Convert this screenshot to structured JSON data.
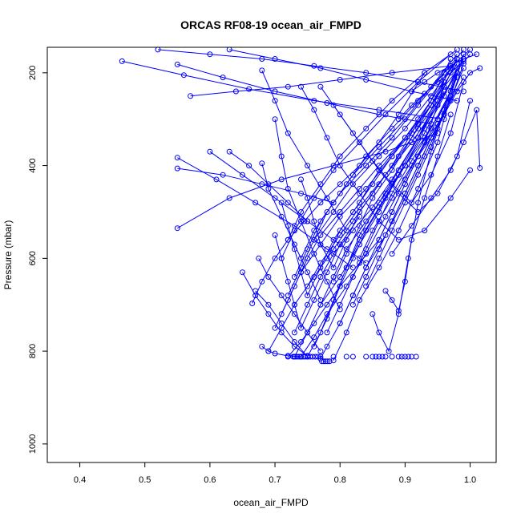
{
  "chart_data": {
    "type": "line",
    "title": "ORCAS RF08-19 ocean_air_FMPD",
    "xlabel": "ocean_air_FMPD",
    "ylabel": "Pressure (mbar)",
    "xlim": [
      0.35,
      1.04
    ],
    "ylim": [
      1040,
      145
    ],
    "y_reversed": true,
    "x_ticks": [
      0.4,
      0.5,
      0.6,
      0.7,
      0.8,
      0.9,
      1.0
    ],
    "x_tick_labels": [
      "0.4",
      "0.5",
      "0.6",
      "0.7",
      "0.8",
      "0.9",
      "1.0"
    ],
    "y_ticks": [
      200,
      400,
      600,
      800,
      1000
    ],
    "y_tick_labels": [
      "200",
      "400",
      "600",
      "800",
      "1000"
    ],
    "grid": false,
    "series_color": "#0000ff",
    "series": [
      {
        "x": [
          0.72,
          0.74,
          0.76,
          0.78,
          0.8,
          0.83,
          0.86,
          0.88,
          0.9,
          0.92,
          0.95,
          0.97,
          0.99
        ],
        "y": [
          812,
          780,
          740,
          700,
          660,
          610,
          560,
          500,
          440,
          380,
          320,
          250,
          160
        ]
      },
      {
        "x": [
          0.73,
          0.75,
          0.77,
          0.8,
          0.83,
          0.86,
          0.89,
          0.92,
          0.95,
          0.98
        ],
        "y": [
          812,
          760,
          700,
          640,
          570,
          500,
          420,
          340,
          260,
          170
        ]
      },
      {
        "x": [
          0.74,
          0.76,
          0.78,
          0.81,
          0.84,
          0.87,
          0.9,
          0.93,
          0.96
        ],
        "y": [
          812,
          770,
          720,
          660,
          590,
          510,
          430,
          350,
          230
        ]
      },
      {
        "x": [
          0.69,
          0.71,
          0.73,
          0.76,
          0.79,
          0.82,
          0.85,
          0.88,
          0.91,
          0.94,
          0.97
        ],
        "y": [
          800,
          750,
          700,
          640,
          580,
          520,
          460,
          400,
          330,
          260,
          170
        ]
      },
      {
        "x": [
          0.665,
          0.68,
          0.7,
          0.72,
          0.745,
          0.77,
          0.8,
          0.83,
          0.86,
          0.89,
          0.93
        ],
        "y": [
          697,
          650,
          600,
          560,
          520,
          480,
          440,
          400,
          350,
          290,
          200
        ]
      },
      {
        "x": [
          0.73,
          0.75,
          0.77,
          0.79,
          0.82,
          0.85,
          0.88,
          0.92,
          0.96
        ],
        "y": [
          760,
          700,
          640,
          590,
          540,
          490,
          430,
          340,
          220
        ]
      },
      {
        "x": [
          0.79,
          0.81,
          0.83,
          0.86,
          0.89,
          0.92,
          0.95,
          0.98
        ],
        "y": [
          820,
          760,
          690,
          620,
          540,
          450,
          350,
          200
        ]
      },
      {
        "x": [
          0.55,
          0.63,
          0.71,
          0.79,
          0.87,
          0.95
        ],
        "y": [
          535,
          470,
          430,
          400,
          370,
          330
        ]
      },
      {
        "x": [
          0.465,
          0.56,
          0.66,
          0.76,
          0.86,
          0.96
        ],
        "y": [
          175,
          205,
          235,
          260,
          280,
          300
        ]
      },
      {
        "x": [
          0.55,
          0.62,
          0.7,
          0.78,
          0.86,
          0.94
        ],
        "y": [
          182,
          210,
          240,
          265,
          290,
          310
        ]
      },
      {
        "x": [
          0.57,
          0.64,
          0.72,
          0.8,
          0.88,
          0.97
        ],
        "y": [
          250,
          240,
          230,
          215,
          200,
          185
        ]
      },
      {
        "x": [
          0.6,
          0.65,
          0.7,
          0.75,
          0.8,
          0.84
        ],
        "y": [
          370,
          420,
          470,
          520,
          570,
          610
        ]
      },
      {
        "x": [
          0.55,
          0.61,
          0.67,
          0.73,
          0.78,
          0.82
        ],
        "y": [
          383,
          430,
          480,
          530,
          580,
          620
        ]
      },
      {
        "x": [
          0.55,
          0.62,
          0.68,
          0.74,
          0.79
        ],
        "y": [
          406,
          420,
          440,
          460,
          480
        ]
      },
      {
        "x": [
          0.63,
          0.66,
          0.69,
          0.72,
          0.75
        ],
        "y": [
          370,
          400,
          440,
          480,
          520
        ]
      },
      {
        "x": [
          0.68,
          0.7,
          0.72,
          0.75,
          0.78,
          0.81
        ],
        "y": [
          195,
          260,
          330,
          400,
          470,
          540
        ]
      },
      {
        "x": [
          0.7,
          0.71,
          0.72,
          0.74,
          0.76,
          0.78,
          0.8
        ],
        "y": [
          300,
          380,
          450,
          520,
          590,
          650,
          710
        ]
      },
      {
        "x": [
          0.68,
          0.69,
          0.71,
          0.73,
          0.75,
          0.77
        ],
        "y": [
          395,
          450,
          510,
          570,
          630,
          690
        ]
      },
      {
        "x": [
          0.675,
          0.69,
          0.71,
          0.73,
          0.75,
          0.77
        ],
        "y": [
          600,
          640,
          680,
          720,
          760,
          800
        ]
      },
      {
        "x": [
          0.65,
          0.67,
          0.69,
          0.71,
          0.73,
          0.75
        ],
        "y": [
          630,
          680,
          720,
          760,
          790,
          810
        ]
      },
      {
        "x": [
          0.67,
          0.69,
          0.71,
          0.73,
          0.75
        ],
        "y": [
          670,
          700,
          740,
          780,
          812
        ]
      },
      {
        "x": [
          0.68,
          0.69,
          0.7,
          0.72,
          0.74
        ],
        "y": [
          790,
          800,
          805,
          810,
          812
        ]
      },
      {
        "x": [
          0.74,
          0.76,
          0.78,
          0.8,
          0.83,
          0.86,
          0.89,
          0.93,
          0.97,
          1.0
        ],
        "y": [
          230,
          280,
          340,
          400,
          460,
          520,
          560,
          540,
          470,
          410
        ]
      },
      {
        "x": [
          0.77,
          0.8,
          0.83,
          0.86,
          0.89,
          0.92,
          0.95,
          0.98,
          1.0
        ],
        "y": [
          230,
          290,
          350,
          410,
          460,
          500,
          460,
          380,
          260
        ]
      },
      {
        "x": [
          0.79,
          0.82,
          0.85,
          0.88,
          0.91,
          0.94,
          0.97,
          0.99
        ],
        "y": [
          270,
          330,
          390,
          440,
          480,
          420,
          330,
          220
        ]
      },
      {
        "x": [
          0.86,
          0.88,
          0.9,
          0.92,
          0.94,
          0.96,
          0.98,
          1.0,
          1.015
        ],
        "y": [
          580,
          520,
          460,
          400,
          340,
          290,
          240,
          200,
          190
        ]
      },
      {
        "x": [
          0.88,
          0.91,
          0.94,
          0.97,
          0.99,
          1.01,
          1.015
        ],
        "y": [
          590,
          530,
          470,
          410,
          350,
          280,
          405
        ]
      },
      {
        "x": [
          0.87,
          0.88,
          0.89,
          0.9,
          0.91,
          0.93,
          0.95,
          0.97
        ],
        "y": [
          670,
          690,
          713,
          650,
          560,
          470,
          380,
          290
        ]
      },
      {
        "x": [
          0.85,
          0.86,
          0.875,
          0.89,
          0.905,
          0.92,
          0.94,
          0.96,
          0.98
        ],
        "y": [
          720,
          760,
          800,
          720,
          600,
          480,
          370,
          280,
          190
        ]
      },
      {
        "x": [
          0.77,
          0.78,
          0.8,
          0.82,
          0.84,
          0.87,
          0.9,
          0.93,
          0.96,
          0.99
        ],
        "y": [
          816,
          790,
          740,
          680,
          620,
          550,
          470,
          380,
          290,
          190
        ]
      },
      {
        "x": [
          0.75,
          0.77,
          0.79,
          0.81,
          0.83,
          0.86,
          0.89,
          0.92,
          0.95,
          0.98
        ],
        "y": [
          812,
          760,
          690,
          620,
          550,
          480,
          410,
          340,
          270,
          200
        ]
      },
      {
        "x": [
          0.76,
          0.78,
          0.8,
          0.82,
          0.84,
          0.87,
          0.9,
          0.93,
          0.96
        ],
        "y": [
          790,
          730,
          660,
          600,
          540,
          470,
          400,
          320,
          240
        ]
      },
      {
        "x": [
          0.78,
          0.8,
          0.82,
          0.84,
          0.86,
          0.88,
          0.91,
          0.94,
          0.97
        ],
        "y": [
          760,
          700,
          640,
          580,
          520,
          460,
          390,
          320,
          240
        ]
      },
      {
        "x": [
          0.8,
          0.82,
          0.84,
          0.86,
          0.88,
          0.9,
          0.92,
          0.95,
          0.98
        ],
        "y": [
          740,
          680,
          620,
          560,
          500,
          440,
          380,
          300,
          210
        ]
      },
      {
        "x": [
          0.82,
          0.84,
          0.86,
          0.88,
          0.9,
          0.92,
          0.94,
          0.97,
          0.99
        ],
        "y": [
          700,
          640,
          580,
          520,
          460,
          400,
          340,
          260,
          180
        ]
      },
      {
        "x": [
          0.84,
          0.86,
          0.88,
          0.9,
          0.92,
          0.94,
          0.96,
          0.98
        ],
        "y": [
          660,
          600,
          540,
          480,
          420,
          360,
          280,
          200
        ]
      },
      {
        "x": [
          0.71,
          0.73,
          0.75,
          0.77,
          0.8,
          0.83,
          0.86,
          0.9,
          0.94,
          0.98
        ],
        "y": [
          720,
          660,
          600,
          550,
          500,
          450,
          400,
          340,
          270,
          180
        ]
      },
      {
        "x": [
          0.7,
          0.72,
          0.74,
          0.77,
          0.8,
          0.84,
          0.88,
          0.92,
          0.96,
          1.0
        ],
        "y": [
          750,
          690,
          630,
          570,
          510,
          450,
          380,
          310,
          230,
          160
        ]
      },
      {
        "x": [
          0.72,
          0.74,
          0.76,
          0.79,
          0.82,
          0.86,
          0.9,
          0.94,
          0.98
        ],
        "y": [
          680,
          620,
          560,
          500,
          440,
          380,
          320,
          250,
          170
        ]
      },
      {
        "x": [
          0.73,
          0.75,
          0.77,
          0.8,
          0.84,
          0.88,
          0.92,
          0.96,
          1.0
        ],
        "y": [
          640,
          580,
          520,
          460,
          400,
          340,
          270,
          200,
          150
        ]
      },
      {
        "x": [
          0.74,
          0.76,
          0.79,
          0.82,
          0.86,
          0.9,
          0.94,
          0.98
        ],
        "y": [
          600,
          540,
          480,
          420,
          360,
          300,
          230,
          160
        ]
      },
      {
        "x": [
          0.76,
          0.78,
          0.81,
          0.84,
          0.88,
          0.92,
          0.96,
          0.99
        ],
        "y": [
          560,
          500,
          440,
          380,
          320,
          260,
          200,
          150
        ]
      },
      {
        "x": [
          0.75,
          0.77,
          0.8,
          0.83,
          0.87,
          0.91,
          0.95,
          0.99
        ],
        "y": [
          660,
          610,
          550,
          490,
          420,
          350,
          270,
          170
        ]
      },
      {
        "x": [
          0.78,
          0.8,
          0.83,
          0.86,
          0.9,
          0.94,
          0.98
        ],
        "y": [
          600,
          540,
          480,
          410,
          340,
          260,
          170
        ]
      },
      {
        "x": [
          0.81,
          0.83,
          0.86,
          0.89,
          0.93,
          0.97
        ],
        "y": [
          620,
          560,
          490,
          420,
          340,
          250
        ]
      },
      {
        "x": [
          0.83,
          0.85,
          0.88,
          0.91,
          0.95,
          0.99
        ],
        "y": [
          600,
          540,
          470,
          400,
          310,
          210
        ]
      },
      {
        "x": [
          0.72,
          0.74,
          0.77,
          0.8,
          0.84,
          0.88,
          0.93,
          0.98
        ],
        "y": [
          560,
          500,
          440,
          380,
          320,
          260,
          200,
          150
        ]
      },
      {
        "x": [
          0.71,
          0.73,
          0.76,
          0.79,
          0.83,
          0.87,
          0.92,
          0.97
        ],
        "y": [
          600,
          540,
          470,
          410,
          350,
          290,
          220,
          160
        ]
      },
      {
        "x": [
          0.77,
          0.79,
          0.81,
          0.84,
          0.87,
          0.9,
          0.93,
          0.96,
          0.99
        ],
        "y": [
          700,
          640,
          580,
          520,
          460,
          400,
          330,
          250,
          160
        ]
      },
      {
        "x": [
          0.79,
          0.81,
          0.83,
          0.85,
          0.88,
          0.91,
          0.94,
          0.97
        ],
        "y": [
          650,
          590,
          530,
          470,
          410,
          340,
          270,
          190
        ]
      },
      {
        "x": [
          0.63,
          0.7,
          0.77,
          0.84,
          0.91,
          0.98
        ],
        "y": [
          150,
          170,
          190,
          215,
          240,
          260
        ]
      },
      {
        "x": [
          0.52,
          0.6,
          0.68,
          0.76,
          0.84,
          0.92,
          0.99
        ],
        "y": [
          150,
          160,
          170,
          185,
          200,
          220,
          240
        ]
      },
      {
        "x": [
          0.74,
          0.75,
          0.76,
          0.77,
          0.79,
          0.81,
          0.83,
          0.86,
          0.89,
          0.92,
          0.95
        ],
        "y": [
          430,
          470,
          520,
          570,
          620,
          560,
          500,
          440,
          380,
          320,
          260
        ]
      },
      {
        "x": [
          0.71,
          0.72,
          0.73,
          0.74,
          0.75,
          0.77,
          0.79,
          0.82,
          0.85,
          0.88,
          0.92
        ],
        "y": [
          480,
          530,
          580,
          630,
          680,
          620,
          560,
          500,
          440,
          380,
          300
        ]
      },
      {
        "x": [
          0.7,
          0.71,
          0.72,
          0.73,
          0.74,
          0.76,
          0.78,
          0.8,
          0.83
        ],
        "y": [
          550,
          600,
          650,
          700,
          750,
          690,
          630,
          570,
          510
        ]
      },
      {
        "x": [
          0.91,
          0.93,
          0.95,
          0.97,
          0.99,
          1.01
        ],
        "y": [
          240,
          220,
          200,
          185,
          170,
          160
        ]
      },
      {
        "x": [
          0.89,
          0.91,
          0.93,
          0.95,
          0.97,
          0.99
        ],
        "y": [
          300,
          270,
          245,
          220,
          200,
          175
        ]
      }
    ],
    "scatter_811": {
      "x": [
        0.728,
        0.731,
        0.734,
        0.737,
        0.74,
        0.743,
        0.746,
        0.75,
        0.754,
        0.758,
        0.762,
        0.766,
        0.77,
        0.79,
        0.81,
        0.82,
        0.84,
        0.85,
        0.855,
        0.86,
        0.865,
        0.87,
        0.88,
        0.89,
        0.895,
        0.9,
        0.905,
        0.91,
        0.917
      ],
      "y": [
        812,
        812,
        812,
        812,
        812,
        812,
        812,
        812,
        812,
        812,
        812,
        812,
        812,
        812,
        812,
        812,
        812,
        812,
        812,
        812,
        812,
        812,
        812,
        812,
        812,
        812,
        812,
        812,
        812
      ]
    },
    "scatter_822": {
      "x": [
        0.772,
        0.775,
        0.778,
        0.781,
        0.784
      ],
      "y": [
        822,
        822,
        822,
        822,
        822
      ]
    }
  }
}
